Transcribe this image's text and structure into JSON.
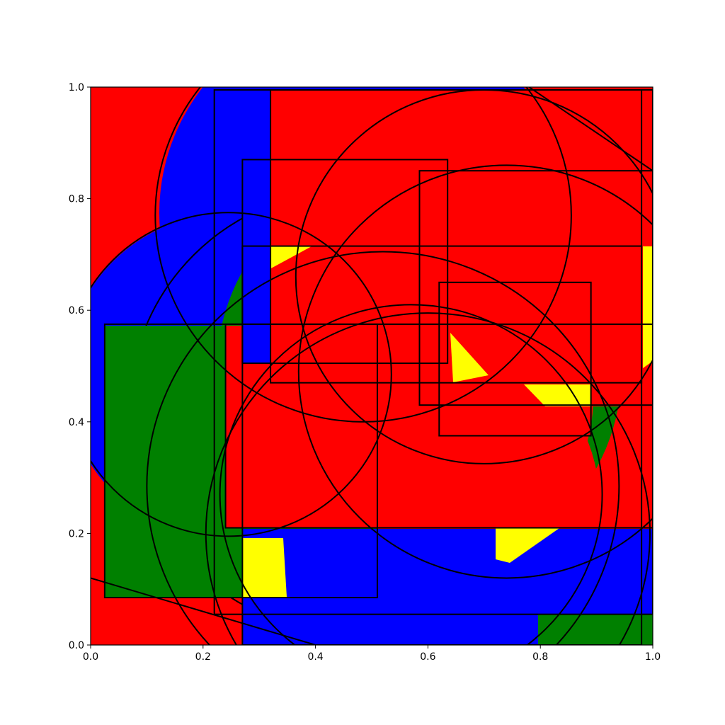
{
  "chart_data": {
    "type": "other",
    "title": "",
    "xlabel": "",
    "ylabel": "",
    "xlim": [
      0.0,
      1.0
    ],
    "ylim": [
      0.0,
      1.0
    ],
    "grid": false,
    "x_ticks": [
      "0.0",
      "0.2",
      "0.4",
      "0.6",
      "0.8",
      "1.0"
    ],
    "y_ticks": [
      "0.0",
      "0.2",
      "0.4",
      "0.6",
      "0.8",
      "1.0"
    ],
    "palette": [
      "#ff0000",
      "#0000ff",
      "#008000",
      "#ffff00"
    ],
    "shapes": [
      {
        "kind": "rect",
        "x0": 0.27,
        "y0": 0.505,
        "x1": 0.635,
        "y1": 0.87
      },
      {
        "kind": "rect",
        "x0": 0.32,
        "y0": 0.47,
        "x1": 0.98,
        "y1": 0.995
      },
      {
        "kind": "rect",
        "x0": 0.585,
        "y0": 0.43,
        "x1": 1.0,
        "y1": 0.85
      },
      {
        "kind": "rect",
        "x0": 0.27,
        "y0": 0.0,
        "x1": 0.98,
        "y1": 0.715
      },
      {
        "kind": "rect",
        "x0": 0.22,
        "y0": 0.055,
        "x1": 1.0,
        "y1": 0.995
      },
      {
        "kind": "rect",
        "x0": 0.62,
        "y0": 0.375,
        "x1": 0.89,
        "y1": 0.65
      },
      {
        "kind": "rect",
        "x0": 0.025,
        "y0": 0.085,
        "x1": 0.51,
        "y1": 0.575
      },
      {
        "kind": "rect",
        "x0": 0.24,
        "y0": 0.21,
        "x1": 1.0,
        "y1": 0.575
      },
      {
        "kind": "circle",
        "cx": 0.485,
        "cy": 0.77,
        "r": 0.37
      },
      {
        "kind": "circle",
        "cx": 0.7,
        "cy": 0.66,
        "r": 0.335
      },
      {
        "kind": "circle",
        "cx": 0.74,
        "cy": 0.49,
        "r": 0.37
      },
      {
        "kind": "circle",
        "cx": 0.245,
        "cy": 0.485,
        "r": 0.29
      },
      {
        "kind": "circle",
        "cx": 0.52,
        "cy": 0.285,
        "r": 0.42
      },
      {
        "kind": "circle",
        "cx": 0.6,
        "cy": 0.2,
        "r": 0.395
      },
      {
        "kind": "circle",
        "cx": 0.57,
        "cy": 0.27,
        "r": 0.34
      },
      {
        "kind": "line",
        "x0": 0.78,
        "y0": 1.0,
        "x1": 1.0,
        "y1": 0.85
      },
      {
        "kind": "line",
        "x0": 0.0,
        "y0": 0.12,
        "x1": 0.4,
        "y1": 0.0
      }
    ]
  }
}
